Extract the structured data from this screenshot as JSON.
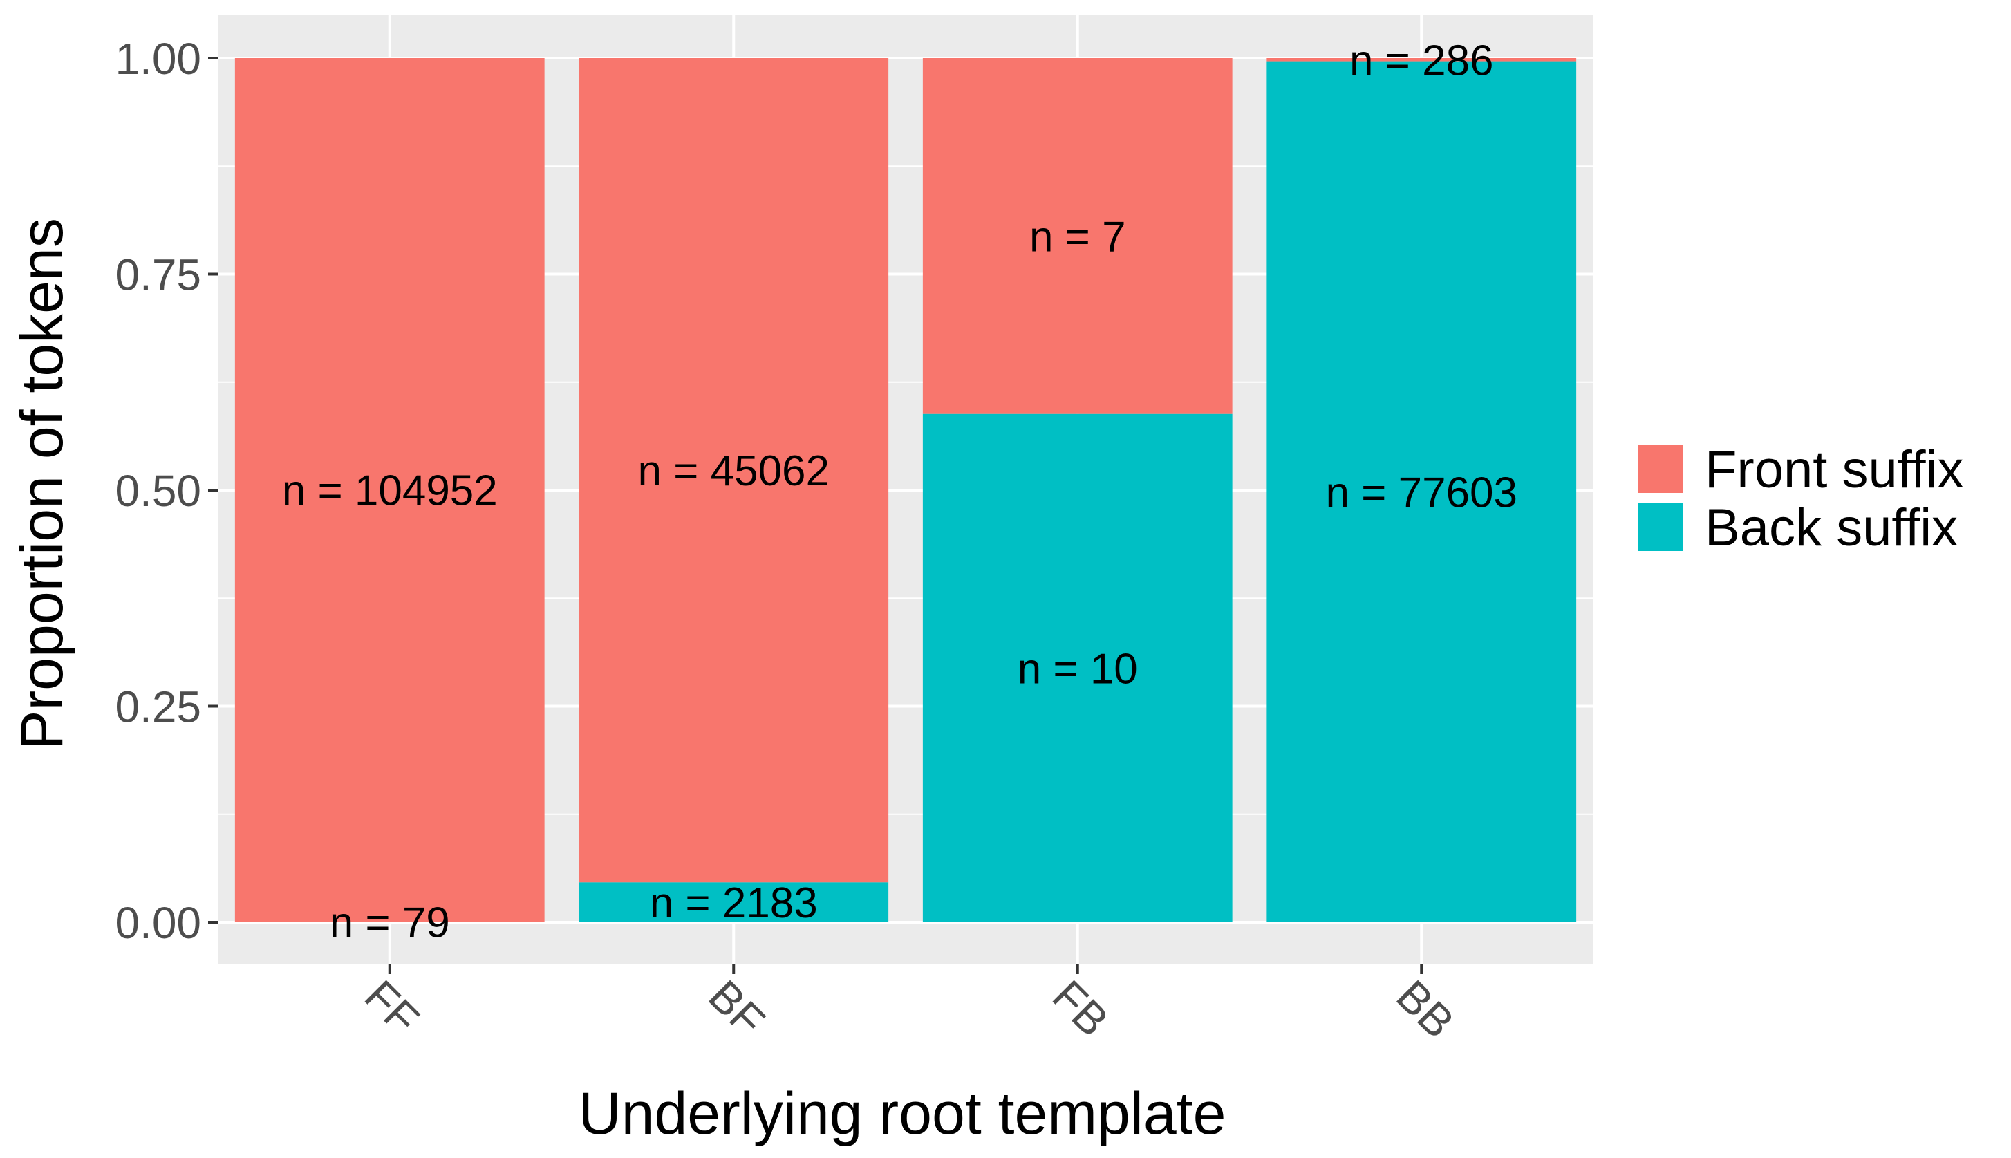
{
  "chart_data": {
    "type": "bar",
    "stacked": true,
    "title": "",
    "xlabel": "Underlying root template",
    "ylabel": "Proportion of tokens",
    "ylim": [
      0,
      1
    ],
    "yticks": [
      "0.00",
      "0.25",
      "0.50",
      "0.75",
      "1.00"
    ],
    "ytick_values": [
      0,
      0.25,
      0.5,
      0.75,
      1
    ],
    "categories": [
      "FF",
      "BF",
      "FB",
      "BB"
    ],
    "series": [
      {
        "name": "Front suffix",
        "counts": [
          104952,
          45062,
          7,
          286
        ],
        "values": [
          0.99925,
          0.95378,
          0.41176,
          0.00367
        ],
        "labels": [
          "n =  104952",
          "n =  45062",
          "n =  7",
          "n =  286"
        ]
      },
      {
        "name": "Back suffix",
        "counts": [
          79,
          2183,
          10,
          77603
        ],
        "values": [
          0.00075,
          0.04622,
          0.58824,
          0.99633
        ],
        "labels": [
          "n =  79",
          "n =  2183",
          "n =  10",
          "n =  77603"
        ]
      }
    ],
    "legend": {
      "position": "right",
      "title": ""
    },
    "grid": true,
    "x_tick_rotation": "-45deg"
  },
  "colors": {
    "front": "#f8766d",
    "back": "#00bfc4",
    "panel": "#ebebeb",
    "grid_major": "#ffffff",
    "grid_minor": "#f5f5f5"
  }
}
